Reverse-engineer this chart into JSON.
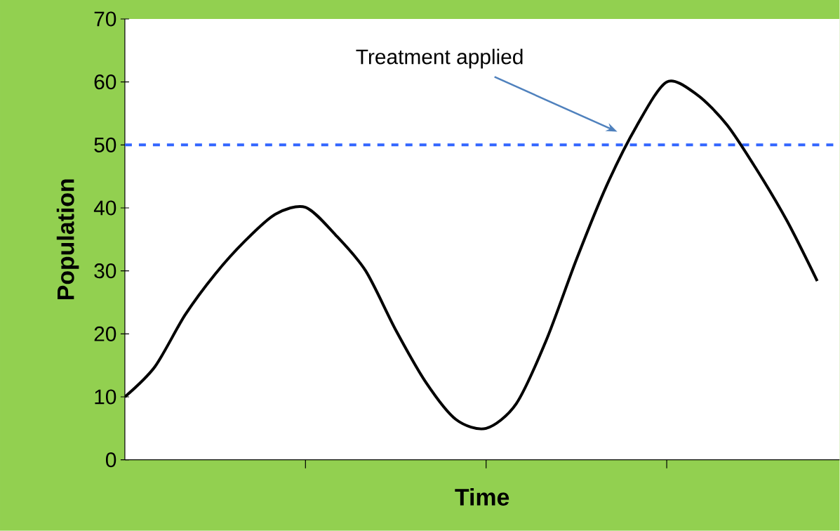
{
  "chart_data": {
    "type": "line",
    "xlabel": "Time",
    "ylabel": "Population",
    "categories": [
      null,
      null,
      null,
      null,
      null,
      null,
      null,
      null,
      null,
      null,
      null,
      null,
      null,
      null,
      null,
      null,
      null,
      null,
      null,
      null,
      null,
      null,
      null,
      null
    ],
    "values": [
      10,
      14.8,
      23,
      29.5,
      34.8,
      39,
      40.1,
      35.7,
      30,
      20.6,
      12.3,
      6.4,
      5,
      8.9,
      19,
      31.8,
      43.5,
      53,
      60,
      58,
      53.2,
      46,
      37.9,
      28.4
    ],
    "color": "#000000",
    "ylim": [
      0,
      70
    ],
    "yticks": [
      0,
      10,
      20,
      30,
      40,
      50,
      60,
      70
    ],
    "annotations": [
      "Treatment applied"
    ],
    "ref_lines": [
      {
        "axis": "y",
        "value": 50,
        "color": "#3366ff",
        "line_style": "dashed"
      }
    ]
  }
}
